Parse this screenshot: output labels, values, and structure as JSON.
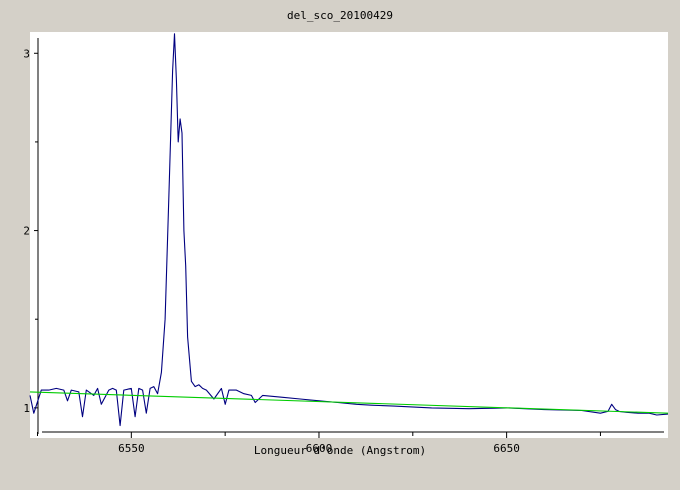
{
  "chart_data": {
    "type": "line",
    "title": "del_sco_20100429",
    "xlabel": "Longueur d'onde (Angstrom)",
    "ylabel": "",
    "xlim": [
      6523,
      6693
    ],
    "ylim": [
      0.83,
      3.12
    ],
    "x_ticks": [
      6550,
      6600,
      6650
    ],
    "y_ticks": [
      1,
      2,
      3
    ],
    "grid": false,
    "colors": {
      "plot_bg": "#ffffff",
      "frame_bg": "#d4d0c8",
      "spectrum": "#000080",
      "continuum": "#00cc00"
    },
    "series": [
      {
        "role": "spectrum",
        "x": [
          6523,
          6524,
          6526,
          6528,
          6530,
          6532,
          6533,
          6534,
          6536,
          6537,
          6538,
          6540,
          6541,
          6542,
          6544,
          6545,
          6546,
          6547,
          6548,
          6550,
          6551,
          6552,
          6553,
          6554,
          6555,
          6556,
          6557,
          6558,
          6559,
          6560,
          6561,
          6561.5,
          6562,
          6562.5,
          6563,
          6563.5,
          6564,
          6564.5,
          6565,
          6566,
          6567,
          6568,
          6569,
          6570,
          6572,
          6574,
          6575,
          6576,
          6578,
          6580,
          6582,
          6583,
          6585,
          6590,
          6595,
          6600,
          6605,
          6610,
          6614,
          6620,
          6630,
          6640,
          6650,
          6660,
          6670,
          6675,
          6677,
          6678,
          6679,
          6680,
          6682,
          6685,
          6688,
          6690,
          6693
        ],
        "y": [
          1.07,
          0.97,
          1.1,
          1.1,
          1.11,
          1.1,
          1.04,
          1.1,
          1.09,
          0.95,
          1.1,
          1.07,
          1.11,
          1.02,
          1.1,
          1.11,
          1.1,
          0.9,
          1.1,
          1.11,
          0.95,
          1.11,
          1.1,
          0.97,
          1.11,
          1.12,
          1.08,
          1.2,
          1.5,
          2.2,
          2.9,
          3.11,
          2.85,
          2.5,
          2.63,
          2.55,
          2.0,
          1.8,
          1.4,
          1.15,
          1.12,
          1.13,
          1.11,
          1.1,
          1.05,
          1.11,
          1.02,
          1.1,
          1.1,
          1.08,
          1.07,
          1.03,
          1.07,
          1.06,
          1.05,
          1.04,
          1.03,
          1.02,
          1.015,
          1.01,
          1.0,
          0.995,
          1.0,
          0.99,
          0.985,
          0.97,
          0.98,
          1.02,
          0.99,
          0.98,
          0.975,
          0.97,
          0.97,
          0.96,
          0.965
        ]
      },
      {
        "role": "continuum",
        "x": [
          6523,
          6693
        ],
        "y": [
          1.09,
          0.97
        ]
      }
    ]
  }
}
